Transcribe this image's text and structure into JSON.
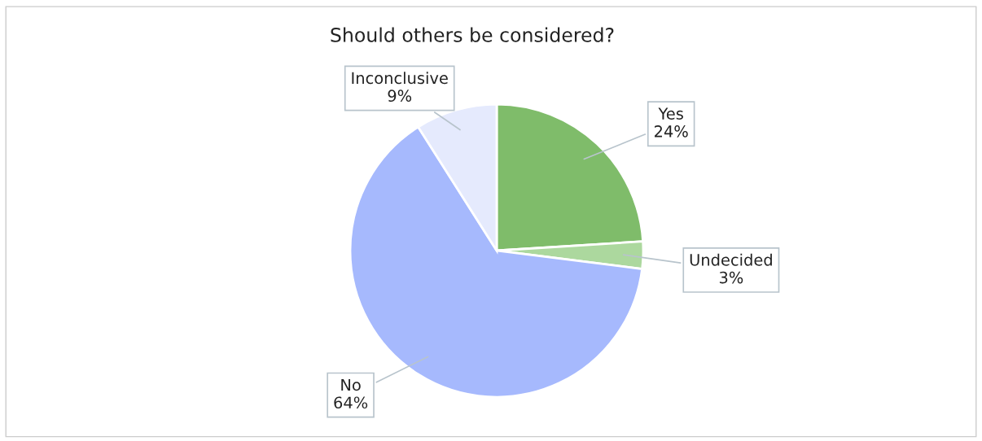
{
  "chart_data": {
    "type": "pie",
    "title": "Should others be considered?",
    "categories": [
      "Yes",
      "Undecided",
      "No",
      "Inconclusive"
    ],
    "values": [
      24,
      3,
      64,
      9
    ],
    "colors": [
      "#7fbc6a",
      "#acd89e",
      "#a6b9fd",
      "#e5eafd"
    ],
    "value_labels": [
      "24%",
      "3%",
      "64%",
      "9%"
    ]
  }
}
